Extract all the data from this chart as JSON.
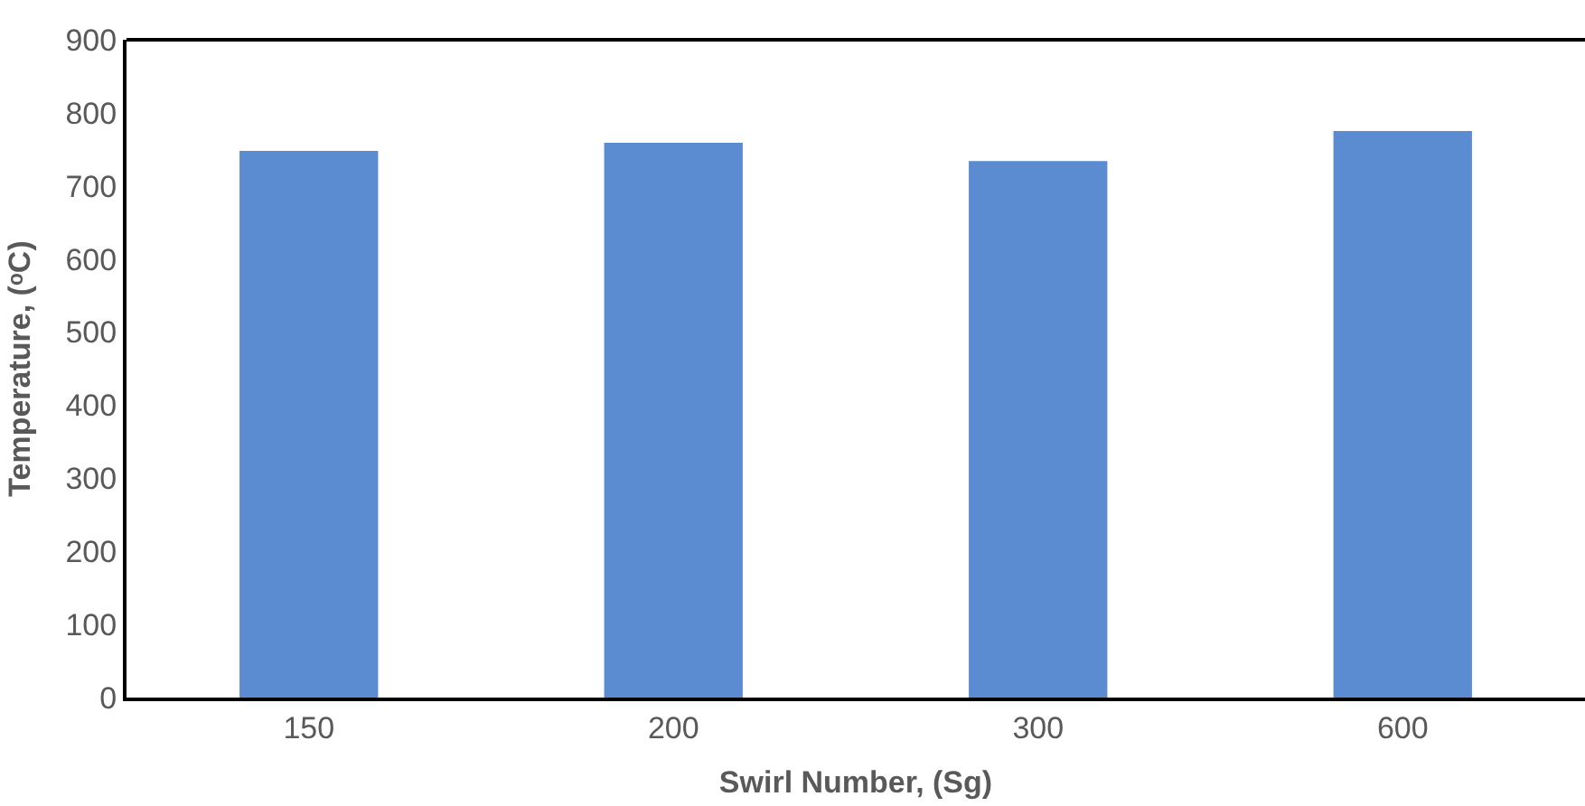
{
  "chart_data": {
    "type": "bar",
    "xlabel": "Swirl Number, (Sg)",
    "ylabel": "Temperature, (ᵒC)",
    "categories": [
      "150",
      "200",
      "300",
      "600"
    ],
    "values": [
      748,
      759,
      734,
      775
    ],
    "color": "#5b8bd0",
    "ylim": [
      0,
      900
    ],
    "yticks": [
      0,
      100,
      200,
      300,
      400,
      500,
      600,
      700,
      800,
      900
    ]
  }
}
